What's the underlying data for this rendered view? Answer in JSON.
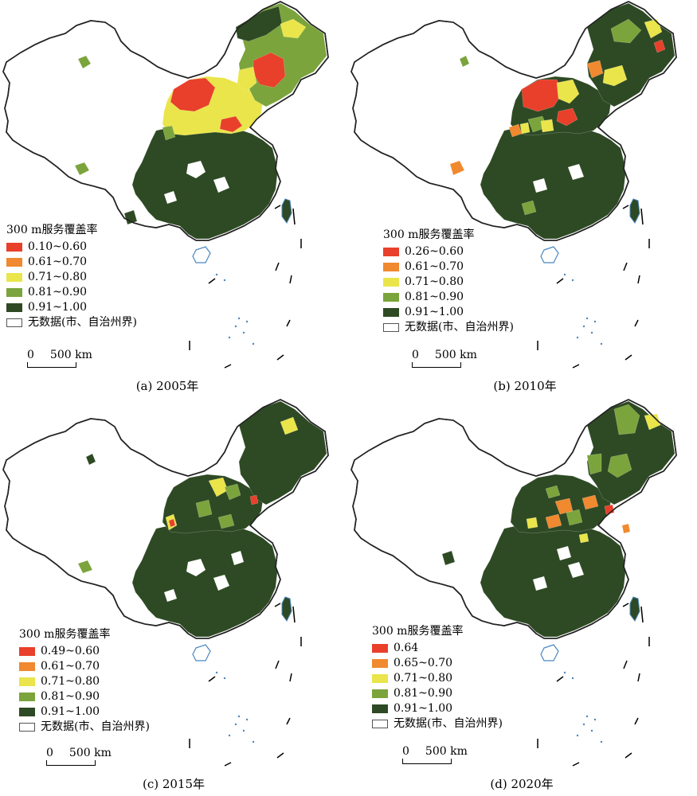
{
  "colors": {
    "c1": "#e8402b",
    "c2": "#f0892f",
    "c3": "#eae54a",
    "c4": "#7ba43c",
    "c5": "#2e4a24",
    "nodata": "#ffffff",
    "sea": "#4a86c0"
  },
  "panels": [
    {
      "caption": "(a) 2005年",
      "legend": {
        "title": "300 m服务覆盖率",
        "items": [
          "0.10~0.60",
          "0.61~0.70",
          "0.71~0.80",
          "0.81~0.90",
          "0.91~1.00"
        ],
        "nodata": "无数据(市、自治州界)"
      },
      "scale": {
        "zero": "0",
        "dist": "500 km"
      }
    },
    {
      "caption": "(b) 2010年",
      "legend": {
        "title": "300 m服务覆盖率",
        "items": [
          "0.26~0.60",
          "0.61~0.70",
          "0.71~0.80",
          "0.81~0.90",
          "0.91~1.00"
        ],
        "nodata": "无数据(市、自治州界)"
      },
      "scale": {
        "zero": "0",
        "dist": "500 km"
      }
    },
    {
      "caption": "(c) 2015年",
      "legend": {
        "title": "300 m服务覆盖率",
        "items": [
          "0.49~0.60",
          "0.61~0.70",
          "0.71~0.80",
          "0.81~0.90",
          "0.91~1.00"
        ],
        "nodata": "无数据(市、自治州界)"
      },
      "scale": {
        "zero": "0",
        "dist": "500 km"
      }
    },
    {
      "caption": "(d) 2020年",
      "legend": {
        "title": "300 m服务覆盖率",
        "items": [
          "0.64",
          "0.65~0.70",
          "0.71~0.80",
          "0.81~0.90",
          "0.91~1.00"
        ],
        "nodata": "无数据(市、自治州界)"
      },
      "scale": {
        "zero": "0",
        "dist": "500 km"
      }
    }
  ]
}
